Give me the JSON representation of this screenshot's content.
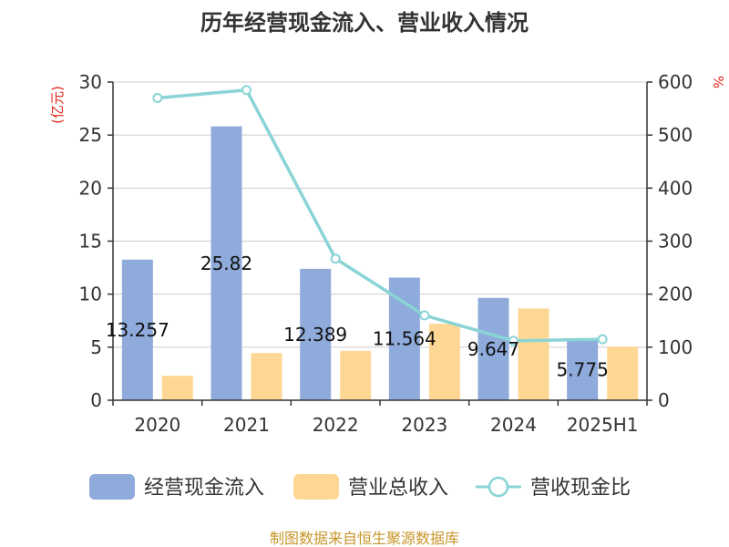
{
  "chart_data": {
    "type": "bar",
    "title": "历年经营现金流入、营业收入情况",
    "categories": [
      "2020",
      "2021",
      "2022",
      "2023",
      "2024",
      "2025H1"
    ],
    "series": [
      {
        "name": "经营现金流入",
        "type": "bar",
        "axis": "left",
        "color": "#8eabdb",
        "values": [
          13.257,
          25.82,
          12.389,
          11.564,
          9.647,
          5.775
        ],
        "labels": [
          "13.257",
          "25.82",
          "12.389",
          "11.564",
          "9.647",
          "5.775"
        ]
      },
      {
        "name": "营业总收入",
        "type": "bar",
        "axis": "left",
        "color": "#ffd795",
        "values": [
          2.3,
          4.45,
          4.65,
          7.2,
          8.65,
          5.05
        ]
      },
      {
        "name": "营收现金比",
        "type": "line",
        "axis": "right",
        "color": "#8ad4d6",
        "values": [
          570,
          585,
          267,
          160,
          112,
          115
        ]
      }
    ],
    "y_left": {
      "unit": "(亿元)",
      "range": [
        0,
        30
      ],
      "ticks": [
        "0",
        "5",
        "10",
        "15",
        "20",
        "25",
        "30"
      ]
    },
    "y_right": {
      "unit": "%",
      "range": [
        0,
        600
      ],
      "ticks": [
        "0",
        "100",
        "200",
        "300",
        "400",
        "500",
        "600"
      ]
    },
    "grid": true,
    "legend_position": "bottom",
    "source": "制图数据来自恒生聚源数据库"
  }
}
